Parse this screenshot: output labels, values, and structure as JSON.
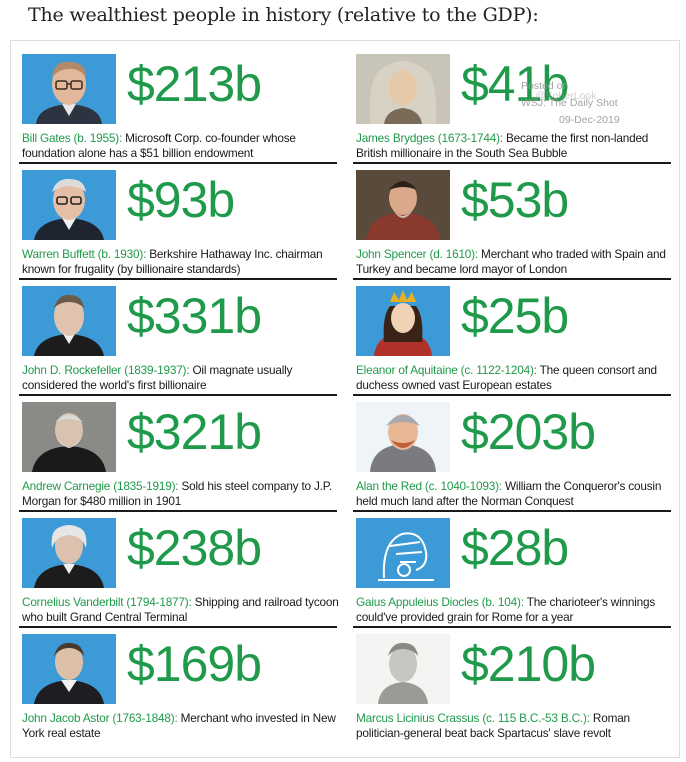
{
  "heading": "The wealthiest people in history (relative to the GDP):",
  "watermark": {
    "line1": "Posted on",
    "line2": "WSJ: The Daily Shot",
    "line3": "09-Dec-2019",
    "line4": "@SoberLook"
  },
  "colors": {
    "accent": "#1f9a4a",
    "portrait_bg": "#3c9bd7",
    "rule": "#1a1a1a"
  },
  "people": [
    {
      "wealth": "$213b",
      "name": "Bill Gates (b. 1955):",
      "desc": " Microsoft Corp. co-founder whose foundation alone has a $51 billion endowment",
      "portrait": "bill-gates-portrait"
    },
    {
      "wealth": "$41b",
      "name": "James Brydges (1673-1744):",
      "desc": " Became the first non-landed British millionaire in the South Sea Bubble",
      "portrait": "james-brydges-portrait"
    },
    {
      "wealth": "$93b",
      "name": "Warren Buffett (b. 1930):",
      "desc": " Berkshire Hathaway Inc. chairman known for frugality (by billionaire standards)",
      "portrait": "warren-buffett-portrait"
    },
    {
      "wealth": "$53b",
      "name": "John Spencer (d. 1610):",
      "desc": " Merchant who traded with Spain and Turkey and became lord mayor of London",
      "portrait": "john-spencer-portrait"
    },
    {
      "wealth": "$331b",
      "name": "John D. Rockefeller (1839-1937):",
      "desc": " Oil magnate usually considered the world's first billionaire",
      "portrait": "john-d-rockefeller-portrait"
    },
    {
      "wealth": "$25b",
      "name": "Eleanor of Aquitaine (c. 1122-1204):",
      "desc": " The queen consort and duchess owned vast European estates",
      "portrait": "eleanor-of-aquitaine-portrait"
    },
    {
      "wealth": "$321b",
      "name": "Andrew Carnegie (1835-1919):",
      "desc": " Sold his steel company to J.P. Morgan for $480 million in 1901",
      "portrait": "andrew-carnegie-portrait"
    },
    {
      "wealth": "$203b",
      "name": "Alan the Red (c. 1040-1093):",
      "desc": " William the Conqueror's cousin held much land after the Norman Conquest",
      "portrait": "alan-the-red-portrait"
    },
    {
      "wealth": "$238b",
      "name": "Cornelius Vanderbilt (1794-1877):",
      "desc": " Shipping and railroad tycoon who built Grand Central Terminal",
      "portrait": "cornelius-vanderbilt-portrait"
    },
    {
      "wealth": "$28b",
      "name": "Gaius Appuleius Diocles (b. 104):",
      "desc": " The charioteer's winnings could've provided grain for Rome for a year",
      "portrait": "gaius-diocles-illustration"
    },
    {
      "wealth": "$169b",
      "name": "John Jacob Astor (1763-1848):",
      "desc": " Merchant who invested in New York real estate",
      "portrait": "john-jacob-astor-portrait"
    },
    {
      "wealth": "$210b",
      "name": "Marcus Licinius Crassus (c. 115 B.C.-53 B.C.):",
      "desc": " Roman politician-general beat back Spartacus' slave revolt",
      "portrait": "marcus-crassus-portrait"
    }
  ]
}
